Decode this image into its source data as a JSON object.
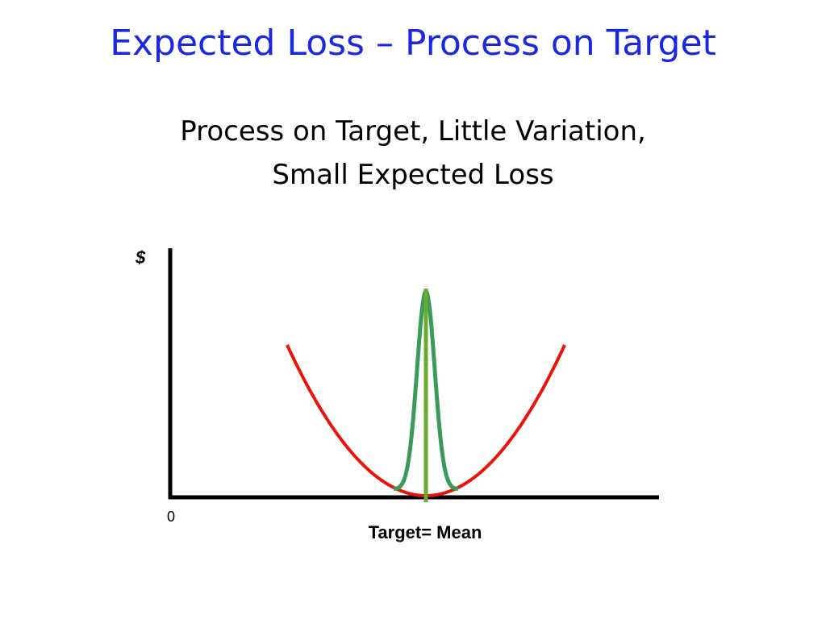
{
  "slide": {
    "title": "Expected Loss – Process on Target",
    "subtitle_line1": "Process on Target, Little Variation,",
    "subtitle_line2": "Small Expected Loss"
  },
  "diagram": {
    "y_axis_label": "$",
    "origin_label": "0",
    "x_axis_label": "Target= Mean",
    "colors": {
      "axes": "#000000",
      "loss_curve": "#e8140c",
      "distribution_curve": "#3a9a5c",
      "target_line": "#6aaa2e"
    }
  }
}
